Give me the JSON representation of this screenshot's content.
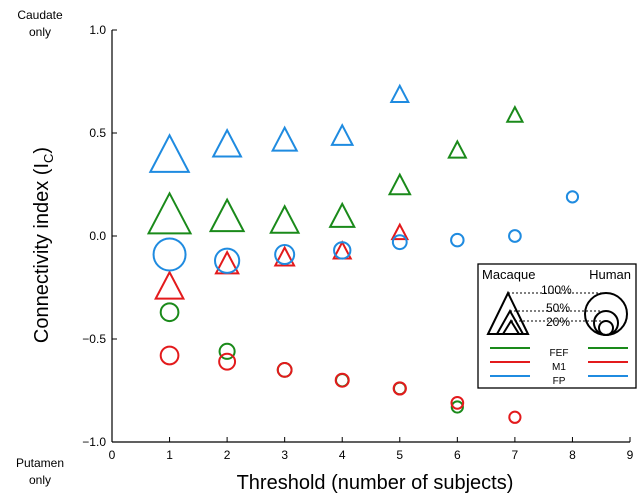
{
  "chart_data": {
    "type": "scatter",
    "xlabel": "Threshold (number of subjects)",
    "ylabel_main": "Connectivity index (I",
    "ylabel_sub": "C",
    "ylabel_close": ")",
    "xlim": [
      0,
      9
    ],
    "ylim": [
      -1.0,
      1.0
    ],
    "xticks": [
      0,
      1,
      2,
      3,
      4,
      5,
      6,
      7,
      8,
      9
    ],
    "yticks": [
      {
        "value": -1.0,
        "label": "−1.0"
      },
      {
        "value": -0.5,
        "label": "−0.5"
      },
      {
        "value": 0.0,
        "label": "0.0"
      },
      {
        "value": 0.5,
        "label": "0.5"
      },
      {
        "value": 1.0,
        "label": "1.0"
      }
    ],
    "top_annotation": [
      "Caudate",
      "only"
    ],
    "bottom_annotation": [
      "Putamen",
      "only"
    ],
    "colors": {
      "FEF": "#1a8a1a",
      "M1": "#e31a1c",
      "FP": "#1f8be0"
    },
    "series": [
      {
        "name": "FEF",
        "species": "Macaque",
        "marker": "triangle",
        "points": [
          {
            "x": 1,
            "y": 0.11,
            "percent": 100
          },
          {
            "x": 2,
            "y": 0.1,
            "percent": 75
          },
          {
            "x": 3,
            "y": 0.08,
            "percent": 60
          },
          {
            "x": 4,
            "y": 0.1,
            "percent": 50
          },
          {
            "x": 5,
            "y": 0.25,
            "percent": 40
          },
          {
            "x": 6,
            "y": 0.42,
            "percent": 30
          },
          {
            "x": 7,
            "y": 0.59,
            "percent": 25
          }
        ]
      },
      {
        "name": "M1",
        "species": "Macaque",
        "marker": "triangle",
        "points": [
          {
            "x": 1,
            "y": -0.24,
            "percent": 60
          },
          {
            "x": 2,
            "y": -0.13,
            "percent": 45
          },
          {
            "x": 3,
            "y": -0.1,
            "percent": 35
          },
          {
            "x": 4,
            "y": -0.07,
            "percent": 30
          },
          {
            "x": 5,
            "y": 0.02,
            "percent": 25
          }
        ]
      },
      {
        "name": "FP",
        "species": "Macaque",
        "marker": "triangle",
        "points": [
          {
            "x": 1,
            "y": 0.4,
            "percent": 90
          },
          {
            "x": 2,
            "y": 0.45,
            "percent": 60
          },
          {
            "x": 3,
            "y": 0.47,
            "percent": 50
          },
          {
            "x": 4,
            "y": 0.49,
            "percent": 40
          },
          {
            "x": 5,
            "y": 0.69,
            "percent": 30
          }
        ]
      },
      {
        "name": "FEF",
        "species": "Human",
        "marker": "circle",
        "points": [
          {
            "x": 1,
            "y": -0.37,
            "percent": 45
          },
          {
            "x": 2,
            "y": -0.56,
            "percent": 35
          },
          {
            "x": 3,
            "y": -0.65,
            "percent": 30
          },
          {
            "x": 4,
            "y": -0.7,
            "percent": 25
          },
          {
            "x": 5,
            "y": -0.74,
            "percent": 22
          },
          {
            "x": 6,
            "y": -0.83,
            "percent": 20
          }
        ]
      },
      {
        "name": "M1",
        "species": "Human",
        "marker": "circle",
        "points": [
          {
            "x": 1,
            "y": -0.58,
            "percent": 45
          },
          {
            "x": 2,
            "y": -0.61,
            "percent": 38
          },
          {
            "x": 3,
            "y": -0.65,
            "percent": 30
          },
          {
            "x": 4,
            "y": -0.7,
            "percent": 27
          },
          {
            "x": 5,
            "y": -0.74,
            "percent": 24
          },
          {
            "x": 6,
            "y": -0.81,
            "percent": 22
          },
          {
            "x": 7,
            "y": -0.88,
            "percent": 20
          }
        ]
      },
      {
        "name": "FP",
        "species": "Human",
        "marker": "circle",
        "points": [
          {
            "x": 1,
            "y": -0.09,
            "percent": 100
          },
          {
            "x": 2,
            "y": -0.12,
            "percent": 70
          },
          {
            "x": 3,
            "y": -0.09,
            "percent": 50
          },
          {
            "x": 4,
            "y": -0.07,
            "percent": 40
          },
          {
            "x": 5,
            "y": -0.03,
            "percent": 30
          },
          {
            "x": 6,
            "y": -0.02,
            "percent": 25
          },
          {
            "x": 7,
            "y": 0.0,
            "percent": 22
          },
          {
            "x": 8,
            "y": 0.19,
            "percent": 20
          }
        ]
      }
    ],
    "legend": {
      "placement": "lower-right",
      "left_header": "Macaque",
      "right_header": "Human",
      "size_labels": [
        "100%",
        "50%",
        "20%"
      ],
      "entries": [
        "FEF",
        "M1",
        "FP"
      ]
    }
  }
}
